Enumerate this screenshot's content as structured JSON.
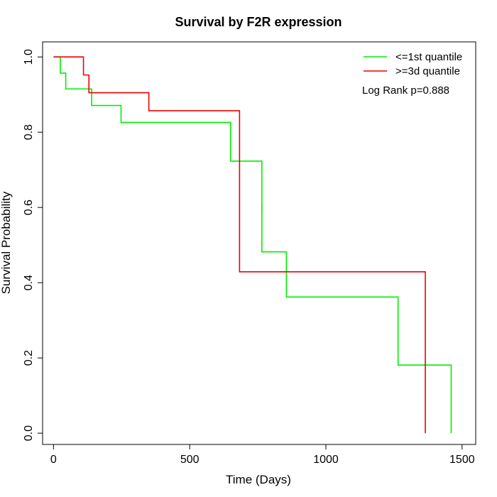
{
  "chart_data": {
    "type": "line",
    "title": "Survival by F2R expression",
    "xlabel": "Time (Days)",
    "ylabel": "Survival Probability",
    "xlim": [
      -40,
      1550
    ],
    "ylim": [
      -0.03,
      1.04
    ],
    "xticks": [
      0,
      500,
      1000,
      1500
    ],
    "yticks": [
      0.0,
      0.2,
      0.4,
      0.6,
      0.8,
      1.0
    ],
    "xtick_labels": [
      "0",
      "500",
      "1000",
      "1500"
    ],
    "ytick_labels": [
      "0.0",
      "0.2",
      "0.4",
      "0.6",
      "0.8",
      "1.0"
    ],
    "grid": false,
    "legend_position": "top-right",
    "annotation": "Log Rank p=0.888",
    "series": [
      {
        "name": "<=1st quantile",
        "color": "#00ee00",
        "step": true,
        "x": [
          0,
          25,
          45,
          140,
          248,
          650,
          765,
          855,
          1265,
          1460
        ],
        "y": [
          1.0,
          0.957,
          0.915,
          0.871,
          0.826,
          0.723,
          0.482,
          0.362,
          0.181,
          0.0
        ],
        "censor_x": [
          765
        ],
        "censor_y": [
          0.6
        ]
      },
      {
        "name": ">=3d quantile",
        "color": "#ee0000",
        "step": true,
        "x": [
          0,
          110,
          130,
          350,
          683,
          1365
        ],
        "y": [
          1.0,
          0.952,
          0.905,
          0.857,
          0.429,
          0.0
        ],
        "censor_x": [],
        "censor_y": []
      }
    ]
  }
}
